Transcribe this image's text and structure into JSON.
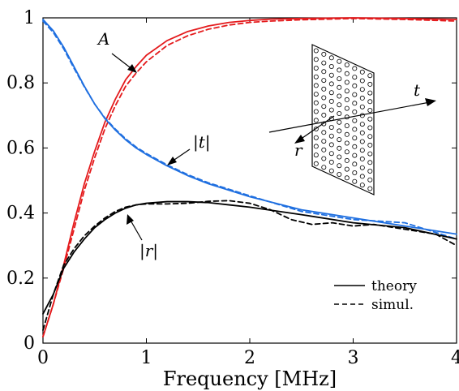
{
  "chart_data": {
    "type": "line",
    "xlabel": "Frequency [MHz]",
    "ylabel": "",
    "xlim": [
      0,
      4
    ],
    "ylim": [
      0,
      1
    ],
    "xticks": [
      "0",
      "1",
      "2",
      "3",
      "4"
    ],
    "yticks": [
      "0",
      "0.2",
      "0.4",
      "0.6",
      "0.8",
      "1"
    ],
    "grid": false,
    "legend_position": "bottom-right",
    "legend": [
      {
        "label": "theory",
        "style": "solid"
      },
      {
        "label": "simul.",
        "style": "dashed"
      }
    ],
    "colors": {
      "A": "#e41a1c",
      "t": "#1f6fe0",
      "r": "#000000"
    },
    "series": [
      {
        "name": "A",
        "style": "solid",
        "x": [
          0,
          0.1,
          0.2,
          0.3,
          0.4,
          0.5,
          0.6,
          0.7,
          0.8,
          0.9,
          1.0,
          1.2,
          1.4,
          1.6,
          1.8,
          2.0,
          2.2,
          2.5,
          3.0,
          3.5,
          4.0
        ],
        "y": [
          0.02,
          0.12,
          0.24,
          0.37,
          0.49,
          0.59,
          0.68,
          0.75,
          0.81,
          0.85,
          0.885,
          0.93,
          0.958,
          0.975,
          0.986,
          0.992,
          0.996,
          0.998,
          1.0,
          0.998,
          0.995
        ]
      },
      {
        "name": "A",
        "style": "dashed",
        "x": [
          0,
          0.1,
          0.2,
          0.3,
          0.4,
          0.5,
          0.6,
          0.7,
          0.8,
          0.9,
          1.0,
          1.2,
          1.4,
          1.6,
          1.8,
          2.0,
          2.2,
          2.5,
          3.0,
          3.5,
          4.0
        ],
        "y": [
          0.02,
          0.12,
          0.23,
          0.35,
          0.47,
          0.57,
          0.66,
          0.73,
          0.79,
          0.83,
          0.865,
          0.915,
          0.945,
          0.965,
          0.978,
          0.986,
          0.99,
          0.994,
          0.998,
          0.995,
          0.99
        ]
      },
      {
        "name": "|t|",
        "style": "solid",
        "x": [
          0,
          0.1,
          0.2,
          0.3,
          0.4,
          0.5,
          0.6,
          0.7,
          0.8,
          0.9,
          1.0,
          1.2,
          1.4,
          1.6,
          1.8,
          2.0,
          2.5,
          3.0,
          3.5,
          4.0
        ],
        "y": [
          0.995,
          0.96,
          0.91,
          0.85,
          0.79,
          0.735,
          0.69,
          0.655,
          0.625,
          0.6,
          0.58,
          0.545,
          0.515,
          0.49,
          0.47,
          0.45,
          0.41,
          0.385,
          0.36,
          0.335
        ]
      },
      {
        "name": "|t|",
        "style": "dashed",
        "x": [
          0,
          0.1,
          0.2,
          0.3,
          0.4,
          0.5,
          0.6,
          0.7,
          0.8,
          0.9,
          1.0,
          1.2,
          1.4,
          1.6,
          1.8,
          2.0,
          2.5,
          3.0,
          3.5,
          4.0
        ],
        "y": [
          0.99,
          0.955,
          0.905,
          0.845,
          0.788,
          0.735,
          0.692,
          0.658,
          0.628,
          0.603,
          0.583,
          0.548,
          0.518,
          0.493,
          0.473,
          0.453,
          0.405,
          0.38,
          0.37,
          0.32
        ]
      },
      {
        "name": "|r|",
        "style": "solid",
        "x": [
          0,
          0.1,
          0.2,
          0.3,
          0.4,
          0.5,
          0.6,
          0.7,
          0.8,
          0.9,
          1.0,
          1.2,
          1.4,
          1.6,
          1.8,
          2.0,
          2.5,
          3.0,
          3.5,
          4.0
        ],
        "y": [
          0.09,
          0.15,
          0.23,
          0.28,
          0.32,
          0.355,
          0.38,
          0.4,
          0.415,
          0.425,
          0.43,
          0.435,
          0.435,
          0.432,
          0.425,
          0.418,
          0.395,
          0.37,
          0.355,
          0.32
        ]
      },
      {
        "name": "|r|",
        "style": "dashed",
        "x": [
          0,
          0.1,
          0.2,
          0.3,
          0.4,
          0.5,
          0.6,
          0.7,
          0.8,
          0.9,
          1.0,
          1.2,
          1.4,
          1.6,
          1.8,
          2.0,
          2.2,
          2.4,
          2.6,
          2.8,
          3.0,
          3.2,
          3.4,
          3.6,
          3.8,
          4.0
        ],
        "y": [
          0.04,
          0.15,
          0.24,
          0.29,
          0.33,
          0.36,
          0.385,
          0.405,
          0.418,
          0.425,
          0.428,
          0.428,
          0.43,
          0.436,
          0.438,
          0.43,
          0.41,
          0.38,
          0.365,
          0.37,
          0.36,
          0.365,
          0.355,
          0.345,
          0.335,
          0.3
        ]
      }
    ],
    "annotations": [
      {
        "text": "A"
      },
      {
        "text": "|t|"
      },
      {
        "text": "|r|"
      },
      {
        "text": "t"
      },
      {
        "text": "r"
      }
    ]
  }
}
